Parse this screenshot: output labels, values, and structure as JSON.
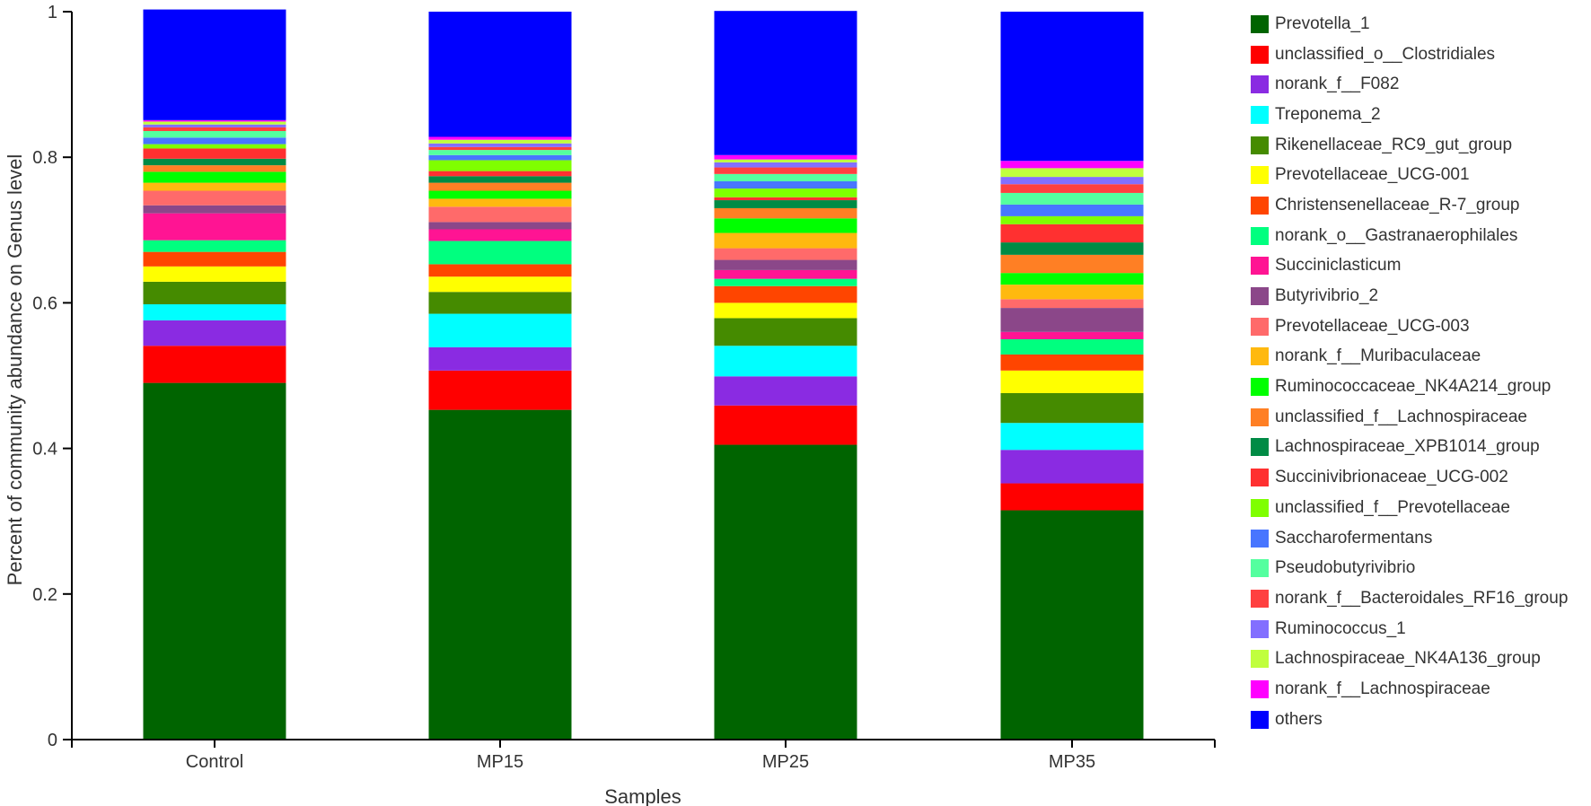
{
  "chart_data": {
    "type": "bar",
    "stacked": true,
    "title": "",
    "xlabel": "Samples",
    "ylabel": "Percent of community abundance on Genus level",
    "ylim": [
      0,
      1
    ],
    "yticks": [
      "0",
      "0.2",
      "0.4",
      "0.6",
      "0.8",
      "1"
    ],
    "grid": false,
    "legend_position": "right",
    "categories": [
      "Control",
      "MP15",
      "MP25",
      "MP35"
    ],
    "series": [
      {
        "name": "Prevotella_1",
        "color": "#006400",
        "values": [
          0.49,
          0.453,
          0.405,
          0.315
        ]
      },
      {
        "name": "unclassified_o__Clostridiales",
        "color": "#FF0000",
        "values": [
          0.051,
          0.054,
          0.054,
          0.037
        ]
      },
      {
        "name": "norank_f__F082",
        "color": "#8A2BE2",
        "values": [
          0.035,
          0.032,
          0.04,
          0.046
        ]
      },
      {
        "name": "Treponema_2",
        "color": "#00FFFF",
        "values": [
          0.022,
          0.046,
          0.042,
          0.037
        ]
      },
      {
        "name": "Rikenellaceae_RC9_gut_group",
        "color": "#458B00",
        "values": [
          0.031,
          0.03,
          0.038,
          0.041
        ]
      },
      {
        "name": "Prevotellaceae_UCG-001",
        "color": "#FFFF00",
        "values": [
          0.021,
          0.021,
          0.021,
          0.031
        ]
      },
      {
        "name": "Christensenellaceae_R-7_group",
        "color": "#FF4500",
        "values": [
          0.02,
          0.017,
          0.023,
          0.022
        ]
      },
      {
        "name": "norank_o__Gastranaerophilales",
        "color": "#00FF7F",
        "values": [
          0.016,
          0.032,
          0.01,
          0.021
        ]
      },
      {
        "name": "Succiniclasticum",
        "color": "#FF1493",
        "values": [
          0.037,
          0.016,
          0.012,
          0.01
        ]
      },
      {
        "name": "Butyrivibrio_2",
        "color": "#8B4789",
        "values": [
          0.011,
          0.01,
          0.014,
          0.033
        ]
      },
      {
        "name": "Prevotellaceae_UCG-003",
        "color": "#FF6A6A",
        "values": [
          0.02,
          0.021,
          0.016,
          0.012
        ]
      },
      {
        "name": "norank_f__Muribaculaceae",
        "color": "#FFB90F",
        "values": [
          0.011,
          0.011,
          0.021,
          0.02
        ]
      },
      {
        "name": "Ruminococcaceae_NK4A214_group",
        "color": "#00FF00",
        "values": [
          0.015,
          0.011,
          0.02,
          0.016
        ]
      },
      {
        "name": "unclassified_f__Lachnospiraceae",
        "color": "#FF7F24",
        "values": [
          0.009,
          0.011,
          0.014,
          0.025
        ]
      },
      {
        "name": "Lachnospiraceae_XPB1014_group",
        "color": "#008B45",
        "values": [
          0.009,
          0.009,
          0.011,
          0.017
        ]
      },
      {
        "name": "Succinivibrionaceae_UCG-002",
        "color": "#FF3030",
        "values": [
          0.014,
          0.007,
          0.004,
          0.025
        ]
      },
      {
        "name": "unclassified_f__Prevotellaceae",
        "color": "#7FFF00",
        "values": [
          0.006,
          0.015,
          0.012,
          0.011
        ]
      },
      {
        "name": "Saccharofermentans",
        "color": "#4876FF",
        "values": [
          0.009,
          0.007,
          0.01,
          0.016
        ]
      },
      {
        "name": "Pseudobutyrivibrio",
        "color": "#54FF9F",
        "values": [
          0.009,
          0.007,
          0.01,
          0.016
        ]
      },
      {
        "name": "norank_f__Bacteroidales_RF16_group",
        "color": "#FF4040",
        "values": [
          0.005,
          0.004,
          0.009,
          0.012
        ]
      },
      {
        "name": "Ruminococcus_1",
        "color": "#836FFF",
        "values": [
          0.004,
          0.005,
          0.007,
          0.01
        ]
      },
      {
        "name": "Lachnospiraceae_NK4A136_group",
        "color": "#C0FF3E",
        "values": [
          0.004,
          0.005,
          0.004,
          0.012
        ]
      },
      {
        "name": "norank_f__Lachnospiraceae",
        "color": "#FF00FF",
        "values": [
          0.002,
          0.004,
          0.006,
          0.01
        ]
      },
      {
        "name": "others",
        "color": "#0000FF",
        "values": [
          0.152,
          0.172,
          0.198,
          0.205
        ]
      }
    ]
  }
}
